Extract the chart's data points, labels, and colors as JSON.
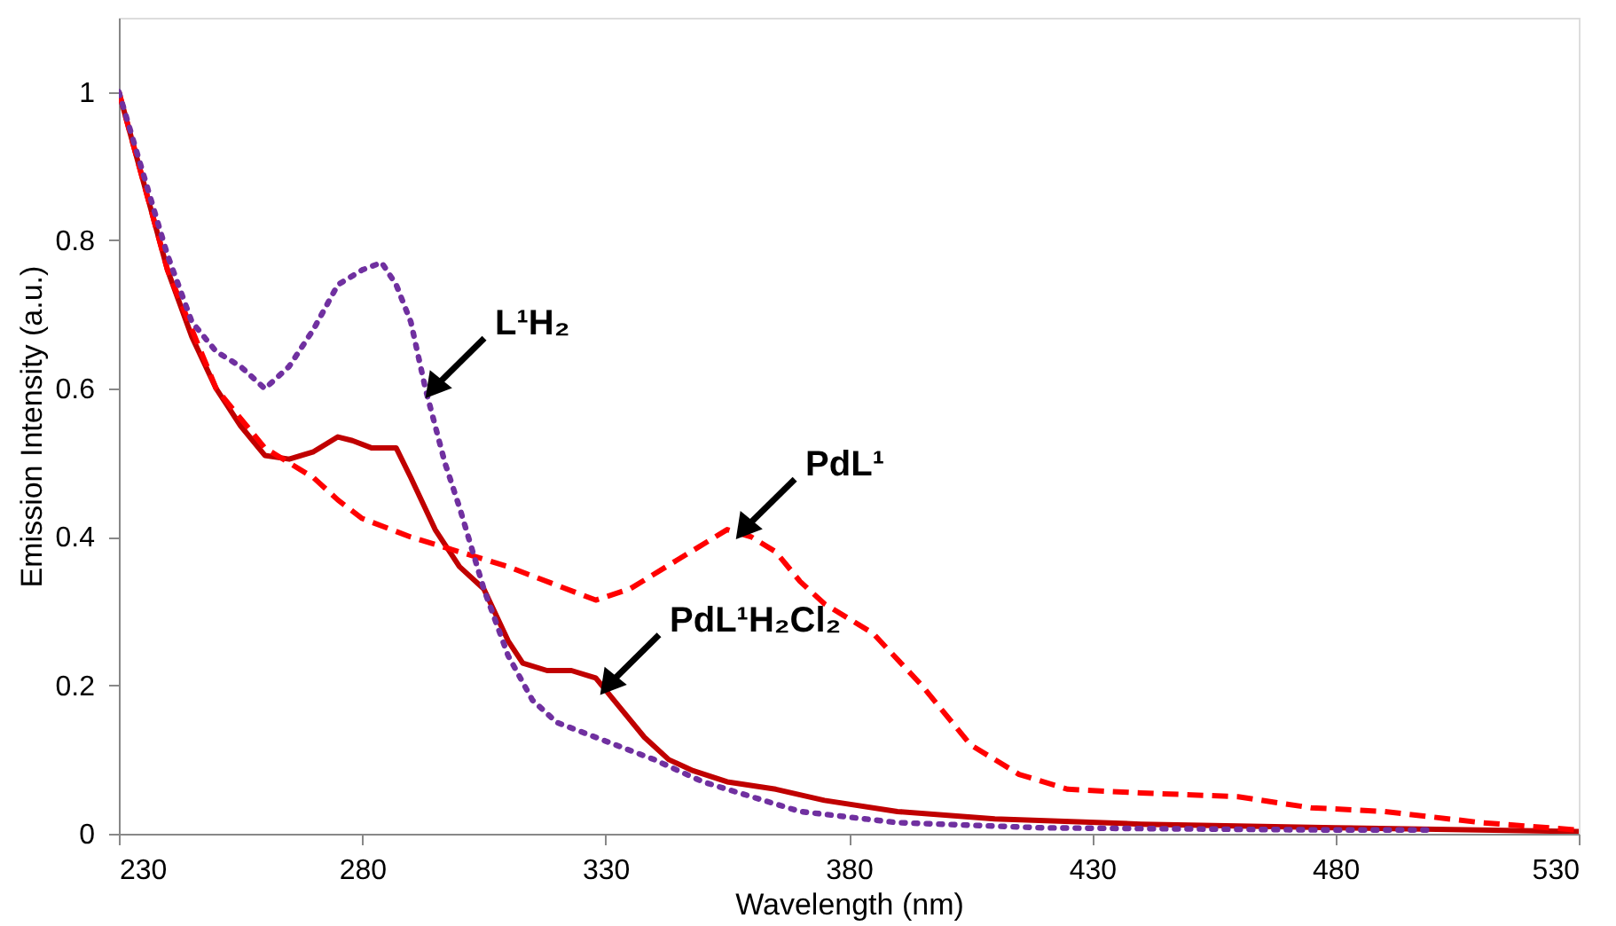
{
  "chart_data": {
    "type": "line",
    "xlabel": "Wavelength (nm)",
    "ylabel": "Emission Intensity (a.u.)",
    "xlim": [
      230,
      530
    ],
    "xticks": [
      230,
      280,
      330,
      380,
      430,
      480,
      530
    ],
    "ylim": [
      0,
      1.1
    ],
    "yticks": [
      0,
      0.2,
      0.4,
      0.6,
      0.8,
      1
    ],
    "grid": false,
    "marker": "none",
    "series": [
      {
        "color": "#c00000",
        "line_style": "solid",
        "x": [
          230,
          235,
          240,
          245,
          250,
          255,
          260,
          265,
          270,
          275,
          278,
          282,
          287,
          290,
          295,
          300,
          305,
          310,
          313,
          318,
          323,
          328,
          333,
          338,
          343,
          348,
          355,
          365,
          375,
          390,
          410,
          440,
          480,
          530
        ],
        "values": [
          1.0,
          0.88,
          0.76,
          0.67,
          0.6,
          0.55,
          0.51,
          0.505,
          0.515,
          0.535,
          0.53,
          0.52,
          0.52,
          0.48,
          0.41,
          0.36,
          0.33,
          0.26,
          0.23,
          0.22,
          0.22,
          0.21,
          0.17,
          0.13,
          0.1,
          0.085,
          0.07,
          0.06,
          0.045,
          0.03,
          0.02,
          0.013,
          0.008,
          0.003
        ]
      },
      {
        "color": "#ff0000",
        "line_style": "dashed",
        "x": [
          230,
          240,
          250,
          260,
          265,
          270,
          275,
          280,
          290,
          300,
          310,
          320,
          328,
          335,
          345,
          355,
          360,
          365,
          370,
          375,
          385,
          395,
          405,
          415,
          425,
          440,
          460,
          475,
          490,
          510,
          530
        ],
        "values": [
          1.0,
          0.76,
          0.6,
          0.52,
          0.5,
          0.48,
          0.45,
          0.425,
          0.4,
          0.38,
          0.36,
          0.335,
          0.315,
          0.33,
          0.37,
          0.41,
          0.4,
          0.38,
          0.34,
          0.31,
          0.27,
          0.2,
          0.12,
          0.08,
          0.06,
          0.055,
          0.05,
          0.035,
          0.03,
          0.015,
          0.005
        ]
      },
      {
        "color": "#7030a0",
        "line_style": "dotted",
        "x": [
          230,
          240,
          245,
          250,
          255,
          260,
          265,
          270,
          275,
          280,
          284,
          287,
          290,
          293,
          297,
          300,
          305,
          310,
          315,
          320,
          330,
          340,
          350,
          360,
          370,
          390,
          420,
          480,
          500
        ],
        "values": [
          1.0,
          0.78,
          0.69,
          0.65,
          0.63,
          0.6,
          0.63,
          0.68,
          0.74,
          0.76,
          0.77,
          0.74,
          0.69,
          0.6,
          0.5,
          0.44,
          0.33,
          0.24,
          0.18,
          0.15,
          0.125,
          0.1,
          0.07,
          0.05,
          0.03,
          0.015,
          0.008,
          0.005,
          0.005
        ]
      }
    ],
    "annotations": [
      {
        "text": "L¹H₂",
        "x": 294.6,
        "y": 0.6
      },
      {
        "text": "PdL¹",
        "x": 358.4,
        "y": 0.41
      },
      {
        "text": "PdL¹H₂Cl₂",
        "x": 330.5,
        "y": 0.2
      }
    ]
  }
}
